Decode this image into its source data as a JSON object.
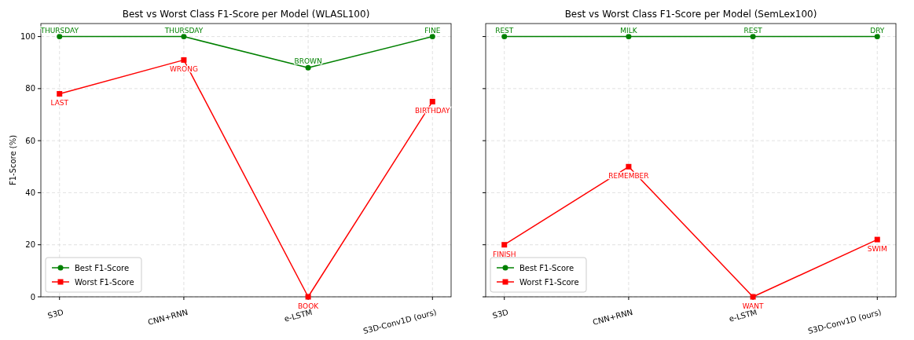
{
  "chart_data": [
    {
      "type": "line",
      "title": "Best vs Worst Class F1-Score per Model (WLASL100)",
      "ylabel": "F1-Score (%)",
      "categories": [
        "S3D",
        "CNN+RNN",
        "e-LSTM",
        "S3D-Conv1D (ours)"
      ],
      "series": [
        {
          "name": "Best F1-Score",
          "color": "#008000",
          "values": [
            100,
            100,
            88,
            100
          ],
          "marker": "circle"
        },
        {
          "name": "Worst F1-Score",
          "color": "#ff0000",
          "values": [
            78,
            91,
            0,
            75
          ],
          "marker": "square"
        }
      ],
      "annotations": [
        {
          "text": "THURSDAY",
          "x": "S3D",
          "y": 100
        },
        {
          "text": "THURSDAY",
          "x": "CNN+RNN",
          "y": 100
        },
        {
          "text": "BROWN",
          "x": "e-LSTM",
          "y": 88
        },
        {
          "text": "FINE",
          "x": "S3D-Conv1D (ours)",
          "y": 100
        },
        {
          "text": "LAST",
          "x": "S3D",
          "y": 78
        },
        {
          "text": "WRONG",
          "x": "CNN+RNN",
          "y": 91
        },
        {
          "text": "BOOK",
          "x": "e-LSTM",
          "y": 0
        },
        {
          "text": "BIRTHDAY",
          "x": "S3D-Conv1D (ours)",
          "y": 75
        }
      ],
      "ylim": [
        0,
        105
      ],
      "yticks": [
        0,
        20,
        40,
        60,
        80,
        100
      ],
      "grid": true,
      "legend": "bottom left",
      "line_style": "solid"
    },
    {
      "type": "line",
      "title": "Best vs Worst Class F1-Score per Model (SemLex100)",
      "categories": [
        "S3D",
        "CNN+RNN",
        "e-LSTM",
        "S3D-Conv1D (ours)"
      ],
      "series": [
        {
          "name": "Best F1-Score",
          "color": "#008000",
          "values": [
            100,
            100,
            100,
            100
          ],
          "marker": "circle"
        },
        {
          "name": "Worst F1-Score",
          "color": "#ff0000",
          "values": [
            20,
            50,
            0,
            22
          ],
          "marker": "square"
        }
      ],
      "annotations": [
        {
          "text": "REST",
          "x": "S3D",
          "y": 100
        },
        {
          "text": "MILK",
          "x": "CNN+RNN",
          "y": 100
        },
        {
          "text": "REST",
          "x": "e-LSTM",
          "y": 100
        },
        {
          "text": "DRY",
          "x": "S3D-Conv1D (ours)",
          "y": 100
        },
        {
          "text": "FINISH",
          "x": "S3D",
          "y": 20
        },
        {
          "text": "REMEMBER",
          "x": "CNN+RNN",
          "y": 50
        },
        {
          "text": "WANT",
          "x": "e-LSTM",
          "y": 0
        },
        {
          "text": "SWIM",
          "x": "S3D-Conv1D (ours)",
          "y": 22
        }
      ],
      "ylim": [
        0,
        105
      ],
      "yticks": [
        0,
        20,
        40,
        60,
        80,
        100
      ],
      "grid": true,
      "legend": "bottom left",
      "line_style": "solid",
      "tick_labels": "x"
    }
  ]
}
